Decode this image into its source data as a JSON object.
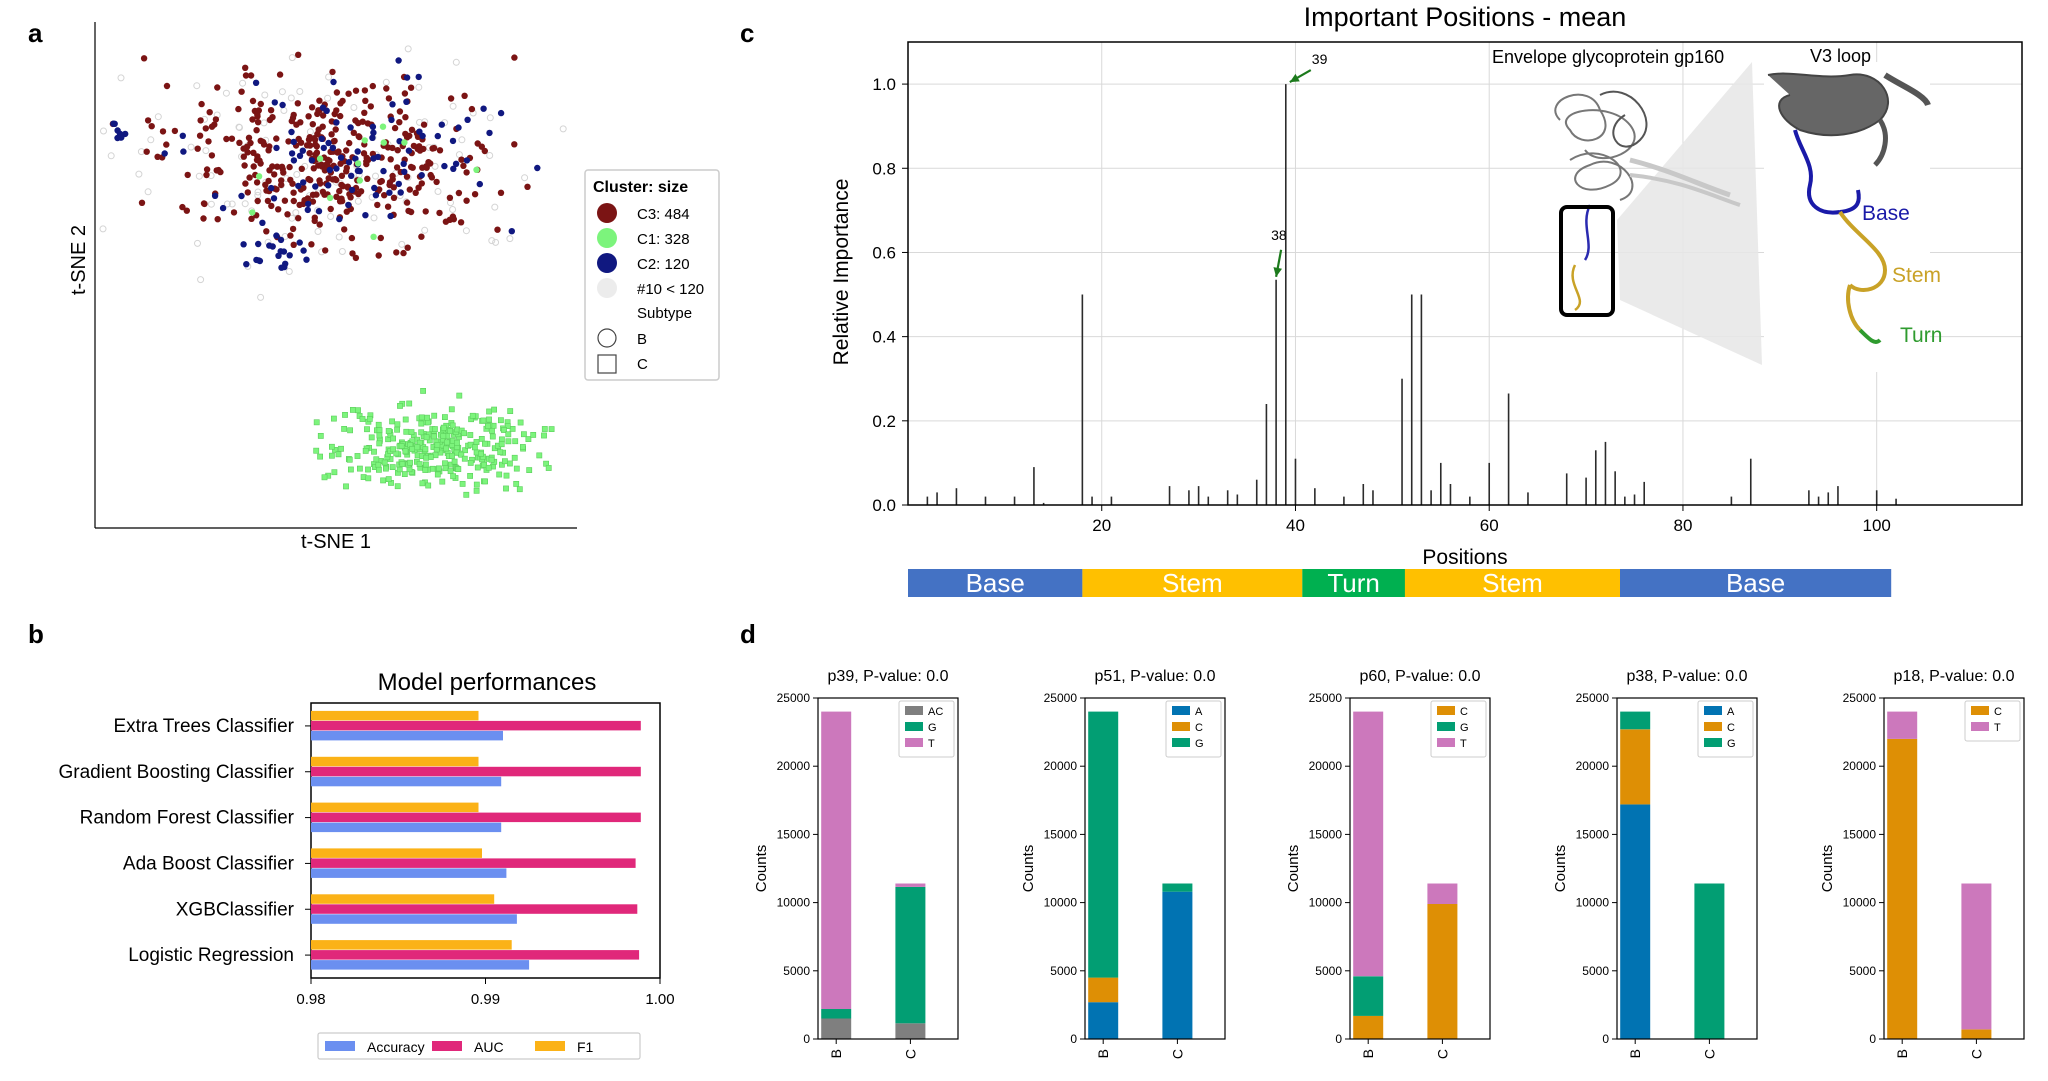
{
  "panel_labels": {
    "a": "a",
    "b": "b",
    "c": "c",
    "d": "d"
  },
  "colors": {
    "c3": "#7b1414",
    "c1": "#7cf47c",
    "c2": "#101880",
    "other": "#ececec",
    "accuracy": "#6b8ff0",
    "auc": "#e0287a",
    "f1": "#fbb217",
    "gray": "#7f7f7f",
    "green": "#029e73",
    "pink": "#cc78bc",
    "blue": "#0173b2",
    "orange": "#de8f05",
    "base": "#4472c4",
    "stem": "#ffc000",
    "turn": "#00b050",
    "arrow": "#1c7a1c"
  },
  "chart_data": [
    {
      "id": "a",
      "type": "scatter",
      "title": "",
      "xlabel": "t-SNE 1",
      "ylabel": "t-SNE 2",
      "legend": {
        "title": "Cluster: size",
        "entries": [
          {
            "label": "C3: 484",
            "color": "c3"
          },
          {
            "label": "C1: 328",
            "color": "c1"
          },
          {
            "label": "C2: 120",
            "color": "c2"
          },
          {
            "label": "#10 < 120",
            "color": "other"
          }
        ],
        "subtitle": "Subtype",
        "shapes": [
          {
            "label": "B",
            "shape": "circle"
          },
          {
            "label": "C",
            "shape": "square"
          }
        ]
      },
      "clusters": [
        {
          "name": "C3",
          "subtype": "B",
          "size": 484
        },
        {
          "name": "C1",
          "subtype": "C",
          "size": 328
        },
        {
          "name": "C2",
          "subtype": "B",
          "size": 120
        }
      ]
    },
    {
      "id": "b",
      "type": "bar",
      "orientation": "horizontal",
      "title": "Model performances",
      "categories": [
        "Extra Trees Classifier",
        "Gradient Boosting Classifier",
        "Random Forest Classifier",
        "Ada Boost Classifier",
        "XGBClassifier",
        "Logistic Regression"
      ],
      "series": [
        {
          "name": "Accuracy",
          "color": "accuracy",
          "values": [
            0.991,
            0.9909,
            0.9909,
            0.9912,
            0.9918,
            0.9925
          ]
        },
        {
          "name": "AUC",
          "color": "auc",
          "values": [
            0.9989,
            0.9989,
            0.9989,
            0.9986,
            0.9987,
            0.9988
          ]
        },
        {
          "name": "F1",
          "color": "f1",
          "values": [
            0.9896,
            0.9896,
            0.9896,
            0.9898,
            0.9905,
            0.9915
          ]
        }
      ],
      "xlim": [
        0.98,
        1.0
      ],
      "xticks": [
        "0.98",
        "0.99",
        "1.00"
      ]
    },
    {
      "id": "c",
      "type": "bar",
      "title": "Important Positions - mean",
      "xlabel": "Positions",
      "ylabel": "Relative Importance",
      "xlim": [
        0,
        115
      ],
      "ylim": [
        0,
        1.1
      ],
      "xticks": [
        "20",
        "40",
        "60",
        "80",
        "100"
      ],
      "yticks": [
        "0.0",
        "0.2",
        "0.4",
        "0.6",
        "0.8",
        "1.0"
      ],
      "x": [
        2,
        3,
        5,
        8,
        11,
        13,
        14,
        18,
        19,
        21,
        27,
        29,
        30,
        31,
        33,
        34,
        36,
        37,
        38,
        39,
        40,
        42,
        45,
        47,
        48,
        51,
        52,
        53,
        54,
        55,
        56,
        58,
        60,
        62,
        64,
        68,
        70,
        71,
        72,
        73,
        74,
        75,
        76,
        85,
        87,
        93,
        94,
        95,
        96,
        100,
        102
      ],
      "values": [
        0.02,
        0.03,
        0.04,
        0.02,
        0.02,
        0.09,
        0.005,
        0.5,
        0.02,
        0.02,
        0.045,
        0.035,
        0.045,
        0.02,
        0.035,
        0.025,
        0.06,
        0.24,
        0.535,
        1.0,
        0.11,
        0.04,
        0.02,
        0.05,
        0.035,
        0.3,
        0.5,
        0.5,
        0.035,
        0.1,
        0.05,
        0.02,
        0.1,
        0.265,
        0.03,
        0.075,
        0.065,
        0.13,
        0.15,
        0.08,
        0.02,
        0.025,
        0.055,
        0.02,
        0.11,
        0.035,
        0.02,
        0.03,
        0.045,
        0.035,
        0.015
      ],
      "annotations": [
        {
          "x": 39,
          "label": "39"
        },
        {
          "x": 38,
          "label": "38"
        }
      ],
      "inset": {
        "label": "Envelope glycoprotein gp160",
        "zoom_label": "V3 loop",
        "parts": [
          "Base",
          "Stem",
          "Turn"
        ]
      },
      "regions": [
        {
          "label": "Base",
          "start": 0,
          "end": 18,
          "color": "base"
        },
        {
          "label": "Stem",
          "start": 18,
          "end": 40.7,
          "color": "stem"
        },
        {
          "label": "Turn",
          "start": 40.7,
          "end": 51.3,
          "color": "turn"
        },
        {
          "label": "Stem",
          "start": 51.3,
          "end": 73.5,
          "color": "stem"
        },
        {
          "label": "Base",
          "start": 73.5,
          "end": 101.5,
          "color": "base"
        }
      ]
    },
    {
      "id": "d",
      "type": "bar",
      "stacked": true,
      "ylabel": "Counts",
      "ylim": [
        0,
        25000
      ],
      "yticks": [
        "0",
        "5000",
        "10000",
        "15000",
        "20000",
        "25000"
      ],
      "subplots": [
        {
          "title": "p39, P-value: 0.0",
          "categories": [
            "B",
            "C"
          ],
          "series": [
            {
              "name": "AC",
              "color": "gray",
              "values": [
                1500,
                1150
              ]
            },
            {
              "name": "G",
              "color": "green",
              "values": [
                700,
                10000
              ]
            },
            {
              "name": "T",
              "color": "pink",
              "values": [
                21800,
                250
              ]
            }
          ]
        },
        {
          "title": "p51, P-value: 0.0",
          "categories": [
            "B",
            "C"
          ],
          "series": [
            {
              "name": "A",
              "color": "blue",
              "values": [
                2700,
                10800
              ]
            },
            {
              "name": "C",
              "color": "orange",
              "values": [
                1800,
                0
              ]
            },
            {
              "name": "G",
              "color": "green",
              "values": [
                19500,
                600
              ]
            }
          ]
        },
        {
          "title": "p60, P-value: 0.0",
          "categories": [
            "B",
            "C"
          ],
          "series": [
            {
              "name": "C",
              "color": "orange",
              "values": [
                1700,
                9900
              ]
            },
            {
              "name": "G",
              "color": "green",
              "values": [
                2900,
                0
              ]
            },
            {
              "name": "T",
              "color": "pink",
              "values": [
                19400,
                1500
              ]
            }
          ]
        },
        {
          "title": "p38, P-value: 0.0",
          "categories": [
            "B",
            "C"
          ],
          "series": [
            {
              "name": "A",
              "color": "blue",
              "values": [
                17200,
                0
              ]
            },
            {
              "name": "C",
              "color": "orange",
              "values": [
                5500,
                0
              ]
            },
            {
              "name": "G",
              "color": "green",
              "values": [
                1300,
                11400
              ]
            }
          ]
        },
        {
          "title": "p18, P-value: 0.0",
          "categories": [
            "B",
            "C"
          ],
          "series": [
            {
              "name": "C",
              "color": "orange",
              "values": [
                22000,
                700
              ]
            },
            {
              "name": "T",
              "color": "pink",
              "values": [
                2000,
                10700
              ]
            }
          ]
        }
      ]
    }
  ]
}
